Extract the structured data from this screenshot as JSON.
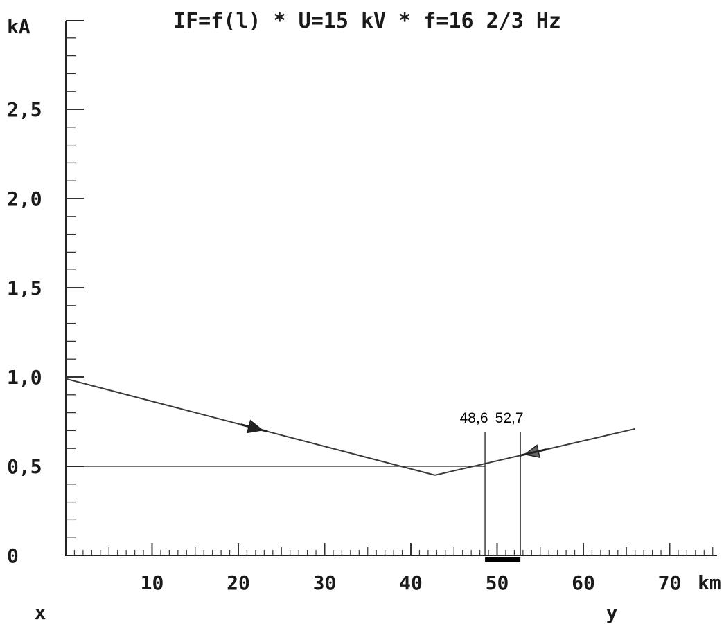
{
  "chart_data": {
    "type": "line",
    "title": "IF=f(l) * U=15 kV * f=16 2/3 Hz",
    "ylabel": "kA",
    "xlabel": "km",
    "xlim": [
      0,
      72
    ],
    "ylim": [
      0,
      3.0
    ],
    "y_ticks": [
      "0",
      "0,5",
      "1,0",
      "1,5",
      "2,0",
      "2,5"
    ],
    "y_tick_values": [
      0,
      0.5,
      1.0,
      1.5,
      2.0,
      2.5
    ],
    "x_ticks": [
      "10",
      "20",
      "30",
      "40",
      "50",
      "60",
      "70"
    ],
    "x_tick_values": [
      10,
      20,
      30,
      40,
      50,
      60,
      70
    ],
    "end_labels": {
      "left": "x",
      "right": "y"
    },
    "series": [
      {
        "x": [
          0,
          42.8
        ],
        "y": [
          0.99,
          0.45
        ],
        "direction": "right",
        "arrow_at": 22
      },
      {
        "x": [
          42.8,
          66
        ],
        "y": [
          0.45,
          0.71
        ],
        "direction": "left",
        "arrow_at": 54
      }
    ],
    "threshold": {
      "y": 0.5
    },
    "markers": [
      {
        "x": 48.6,
        "label": "48,6"
      },
      {
        "x": 52.7,
        "label": "52,7"
      }
    ],
    "fault_zone": [
      48.6,
      52.7
    ],
    "colors": {
      "line": "#3a3a3a",
      "text": "#1a1a1a",
      "zone": "#000000"
    }
  }
}
